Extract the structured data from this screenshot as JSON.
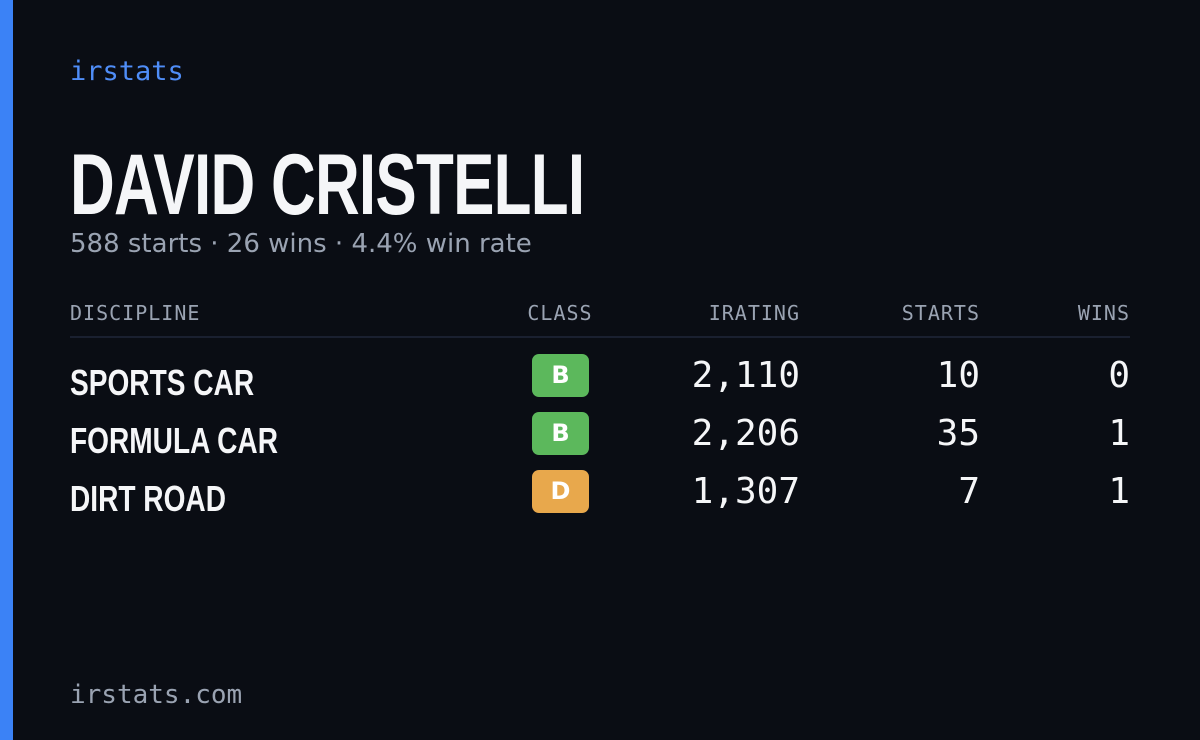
{
  "brand": "irstats",
  "header": {
    "title": "DAVID CRISTELLI",
    "subtitle": "588 starts · 26 wins · 4.4% win rate"
  },
  "table": {
    "columns": [
      "DISCIPLINE",
      "CLASS",
      "IRATING",
      "STARTS",
      "WINS"
    ],
    "rows": [
      {
        "discipline": "SPORTS CAR",
        "class": "B",
        "color": "#5cb85c",
        "irating": "2,110",
        "starts": "10",
        "wins": "0"
      },
      {
        "discipline": "FORMULA CAR",
        "class": "B",
        "color": "#5cb85c",
        "irating": "2,206",
        "starts": "35",
        "wins": "1"
      },
      {
        "discipline": "DIRT ROAD",
        "class": "D",
        "color": "#e8a84c",
        "irating": "1,307",
        "starts": "7",
        "wins": "1"
      }
    ]
  },
  "footer": "irstats.com"
}
